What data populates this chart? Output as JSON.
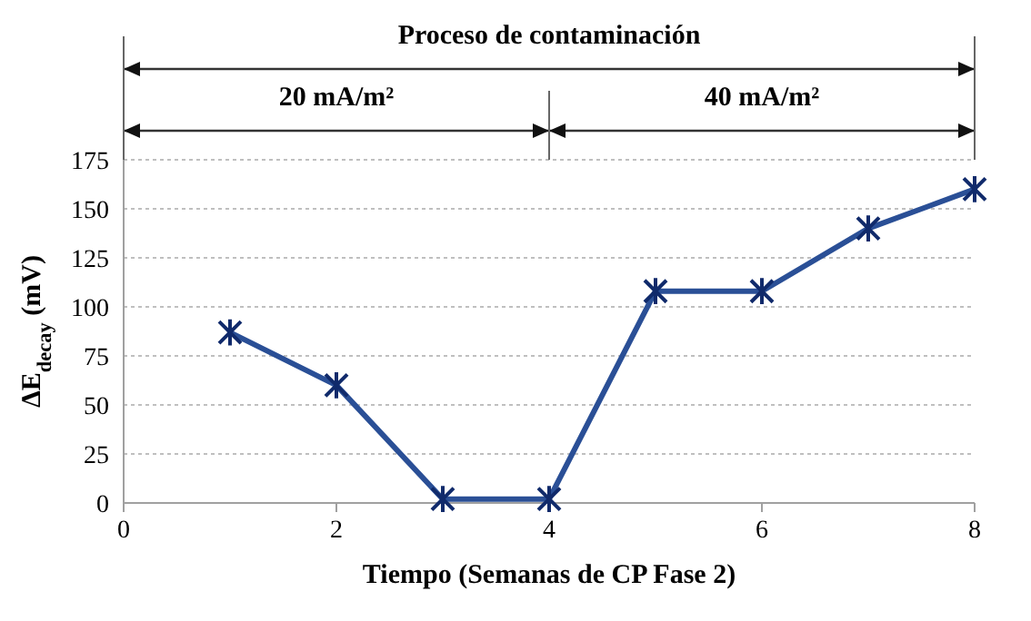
{
  "chart_data": {
    "type": "line",
    "xlabel": "Tiempo (Semanas de CP Fase 2)",
    "ylabel": "ΔE$_{decay}$ (mV)",
    "x": [
      1,
      2,
      3,
      4,
      5,
      6,
      7,
      8
    ],
    "series": [
      {
        "color": "#2a4f96",
        "values": [
          87,
          60,
          2,
          2,
          108,
          108,
          140,
          160
        ]
      }
    ],
    "xlim": [
      0,
      8
    ],
    "xticks": [
      0,
      2,
      4,
      6,
      8
    ],
    "ylim": [
      0,
      175
    ],
    "yticks": [
      0,
      25,
      50,
      75,
      100,
      125,
      150,
      175
    ],
    "grid": "y",
    "marker": "cross",
    "line_style": "solid",
    "annotations": [
      "Proceso de contaminación",
      "20 mA/m²",
      "40 mA/m²"
    ]
  }
}
